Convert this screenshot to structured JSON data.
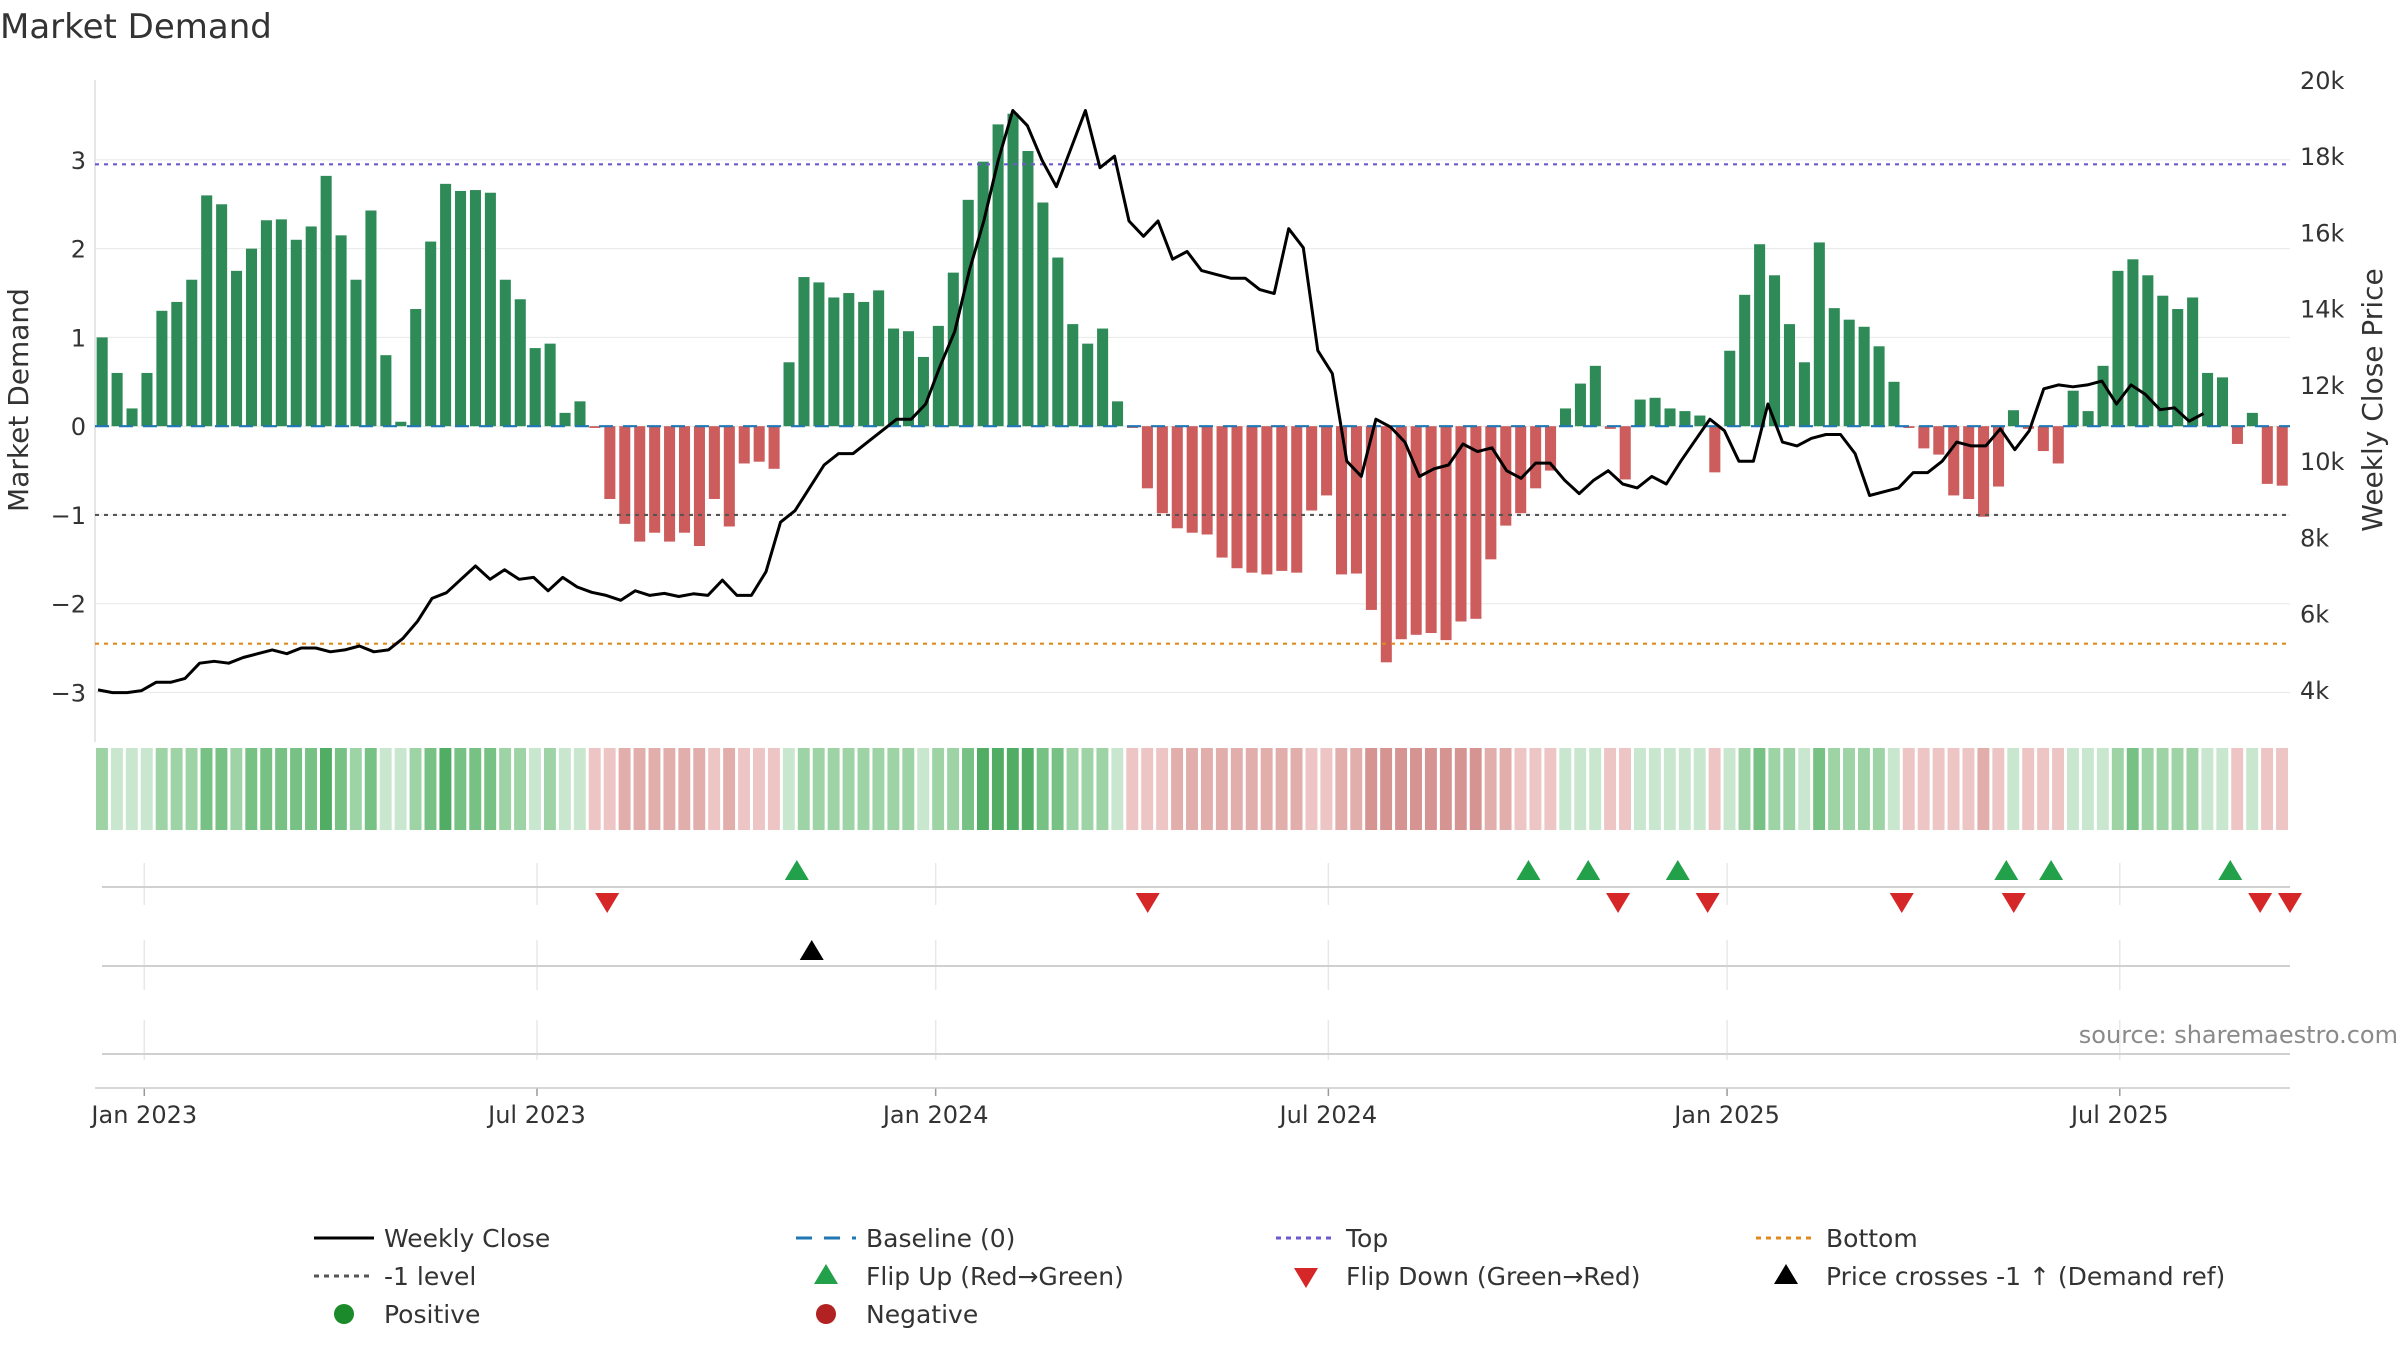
{
  "chart_data": {
    "type": "bar",
    "title": "Market Demand",
    "ylabel_left": "Market Demand",
    "ylabel_right": "Weekly Close Price",
    "ylim_left": [
      -3.4,
      3.9
    ],
    "ylim_right": [
      3000,
      20000
    ],
    "yticks_left": [
      -3,
      -2,
      -1,
      0,
      1,
      2,
      3
    ],
    "ytick_labels_left": [
      "−3",
      "−2",
      "−1",
      "0",
      "1",
      "2",
      "3"
    ],
    "yticks_right": [
      4000,
      6000,
      8000,
      10000,
      12000,
      14000,
      16000,
      18000,
      20000
    ],
    "ytick_labels_right": [
      "4k",
      "6k",
      "8k",
      "10k",
      "12k",
      "14k",
      "16k",
      "18k",
      "20k"
    ],
    "x_week_range": [
      0,
      147
    ],
    "xticks": [
      3.3,
      29.6,
      56.3,
      82.6,
      109.3,
      135.6
    ],
    "xtick_labels": [
      "Jan 2023",
      "Jul 2023",
      "Jan 2024",
      "Jul 2024",
      "Jan 2025",
      "Jul 2025"
    ],
    "reference_lines": {
      "top": 2.95,
      "bottom": -2.45,
      "minus_one": -1,
      "baseline": 0
    },
    "demand": [
      1.0,
      0.6,
      0.2,
      0.6,
      1.3,
      1.4,
      1.65,
      2.6,
      2.5,
      1.75,
      2.0,
      2.32,
      2.33,
      2.1,
      2.25,
      2.82,
      2.15,
      1.65,
      2.43,
      0.8,
      0.05,
      1.32,
      2.08,
      2.73,
      2.65,
      2.66,
      2.63,
      1.65,
      1.43,
      0.88,
      0.93,
      0.15,
      0.28,
      -0.02,
      -0.82,
      -1.1,
      -1.3,
      -1.2,
      -1.3,
      -1.2,
      -1.35,
      -0.82,
      -1.13,
      -0.42,
      -0.4,
      -0.48,
      0.72,
      1.68,
      1.62,
      1.45,
      1.5,
      1.4,
      1.53,
      1.1,
      1.07,
      0.78,
      1.13,
      1.73,
      2.55,
      2.98,
      3.4,
      3.52,
      3.1,
      2.52,
      1.9,
      1.15,
      0.93,
      1.1,
      0.28,
      -0.02,
      -0.7,
      -0.98,
      -1.15,
      -1.2,
      -1.22,
      -1.48,
      -1.6,
      -1.65,
      -1.67,
      -1.63,
      -1.65,
      -0.95,
      -0.78,
      -1.67,
      -1.66,
      -2.07,
      -2.66,
      -2.4,
      -2.35,
      -2.33,
      -2.41,
      -2.2,
      -2.17,
      -1.5,
      -1.12,
      -0.98,
      -0.7,
      -0.5,
      0.2,
      0.48,
      0.68,
      -0.03,
      -0.6,
      0.3,
      0.32,
      0.2,
      0.17,
      0.12,
      -0.52,
      0.85,
      1.48,
      2.05,
      1.7,
      1.15,
      0.72,
      2.07,
      1.33,
      1.2,
      1.12,
      0.9,
      0.5,
      -0.02,
      -0.25,
      -0.32,
      -0.78,
      -0.82,
      -1.02,
      -0.68,
      0.18,
      -0.03,
      -0.28,
      -0.42,
      0.4,
      0.17,
      0.68,
      1.75,
      1.88,
      1.7,
      1.47,
      1.32,
      1.45,
      0.6,
      0.55,
      -0.2,
      0.15,
      -0.65,
      -0.67
    ],
    "series": [
      {
        "name": "Weekly Close",
        "axis": "right",
        "x_start": 0.2,
        "x_step": 0.9725,
        "values": [
          4000,
          3930,
          3930,
          3980,
          4200,
          4200,
          4300,
          4700,
          4750,
          4700,
          4850,
          4950,
          5050,
          4950,
          5100,
          5100,
          5000,
          5050,
          5150,
          5000,
          5050,
          5350,
          5800,
          6400,
          6550,
          6900,
          7250,
          6900,
          7150,
          6900,
          6950,
          6600,
          6950,
          6700,
          6560,
          6480,
          6350,
          6600,
          6480,
          6530,
          6450,
          6520,
          6480,
          6880,
          6480,
          6480,
          7100,
          8400,
          8700,
          9300,
          9900,
          10200,
          10200,
          10500,
          10800,
          11100,
          11100,
          11500,
          12500,
          13400,
          15000,
          16300,
          17900,
          19200,
          18800,
          17900,
          17200,
          18200,
          19200,
          17700,
          18000,
          16300,
          15900,
          16300,
          15300,
          15500,
          15000,
          14900,
          14800,
          14800,
          14500,
          14400,
          16100,
          15600,
          12900,
          12300,
          10000,
          9600,
          11100,
          10900,
          10500,
          9600,
          9800,
          9900,
          10450,
          10250,
          10350,
          9750,
          9550,
          9950,
          9950,
          9500,
          9150,
          9500,
          9750,
          9400,
          9300,
          9600,
          9400,
          10000,
          10550,
          11100,
          10800,
          10000,
          10000,
          11500,
          10500,
          10400,
          10600,
          10700,
          10700,
          10200,
          9100,
          9200,
          9300,
          9700,
          9700,
          10000,
          10500,
          10400,
          10400,
          10850,
          10300,
          10800,
          11900,
          12000,
          11950,
          12000,
          12100,
          11500,
          12000,
          11750,
          11350,
          11400,
          11050,
          11250
        ]
      },
      {
        "name": "Baseline (0)"
      },
      {
        "name": "Top"
      },
      {
        "name": "Bottom"
      },
      {
        "name": "-1 level"
      }
    ],
    "strip_colors_positive": [
      "#c9e7cf",
      "#9ed3a6",
      "#78c184",
      "#52ad64"
    ],
    "strip_colors_negative": [
      "#edc5c4",
      "#e2aeac",
      "#d59391"
    ],
    "markers": {
      "flip_up_x": [
        47,
        96,
        100,
        106,
        128,
        131,
        143
      ],
      "flip_down_x": [
        34.3,
        70.5,
        102,
        108,
        121,
        128.5,
        145,
        147
      ],
      "price_cross_x": [
        48
      ]
    },
    "annotation": "source: sharemaestro.com",
    "legend": [
      {
        "label": "Weekly Close",
        "symbol": "line",
        "color": "#000000"
      },
      {
        "label": "Baseline (0)",
        "symbol": "dash",
        "color": "#1f77b4"
      },
      {
        "label": "Top",
        "symbol": "dot",
        "color": "#6a5acd"
      },
      {
        "label": "Bottom",
        "symbol": "dot",
        "color": "#e08a1e"
      },
      {
        "label": "-1 level",
        "symbol": "dot",
        "color": "#555555"
      },
      {
        "label": "Flip Up (Red→Green)",
        "symbol": "tri-up",
        "color": "#22a04a"
      },
      {
        "label": "Flip Down (Green→Red)",
        "symbol": "tri-down",
        "color": "#d62728"
      },
      {
        "label": "Price crosses -1 ↑ (Demand ref)",
        "symbol": "tri-up",
        "color": "#000000"
      },
      {
        "label": "Positive",
        "symbol": "circle",
        "color": "#1a8a2a"
      },
      {
        "label": "Negative",
        "symbol": "circle",
        "color": "#b22222"
      }
    ],
    "colors": {
      "positive_bar": "#2e8b57",
      "negative_bar": "#cd5c5c",
      "price": "#000000",
      "grid": "#e8e8e8"
    }
  }
}
